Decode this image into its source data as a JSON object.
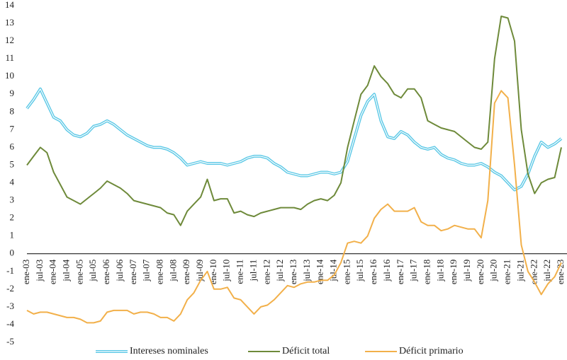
{
  "chart_data": {
    "type": "line",
    "categories": [
      "ene-03",
      null,
      "jul-03",
      null,
      "ene-04",
      null,
      "jul-04",
      null,
      "ene-05",
      null,
      "jul-05",
      null,
      "ene-06",
      null,
      "jul-06",
      null,
      "ene-07",
      null,
      "jul-07",
      null,
      "ene-08",
      null,
      "jul-08",
      null,
      "ene-09",
      null,
      "jul-09",
      null,
      "ene-10",
      null,
      "jul-10",
      null,
      "ene-11",
      null,
      "jul-11",
      null,
      "ene-12",
      null,
      "jul-12",
      null,
      "ene-13",
      null,
      "jul-13",
      null,
      "ene-14",
      null,
      "jul-14",
      null,
      "ene-15",
      null,
      "jul-15",
      null,
      "ene-16",
      null,
      "jul-16",
      null,
      "ene-17",
      null,
      "jul-17",
      null,
      "ene-18",
      null,
      "jul-18",
      null,
      "ene-19",
      null,
      "jul-19",
      null,
      "ene-20",
      null,
      "jul-20",
      null,
      "ene-21",
      null,
      "jul-21",
      null,
      "ene-22",
      null,
      "jul-22",
      null,
      "ene-23"
    ],
    "series": [
      {
        "name": "Intereses nominales",
        "color": "#5bc8e6",
        "values": [
          8.2,
          8.7,
          9.3,
          8.5,
          7.7,
          7.5,
          7.0,
          6.7,
          6.6,
          6.8,
          7.2,
          7.3,
          7.5,
          7.3,
          7.0,
          6.7,
          6.5,
          6.3,
          6.1,
          6.0,
          6.0,
          5.9,
          5.7,
          5.4,
          5.0,
          5.1,
          5.2,
          5.1,
          5.1,
          5.1,
          5.0,
          5.1,
          5.2,
          5.4,
          5.5,
          5.5,
          5.4,
          5.1,
          4.9,
          4.6,
          4.5,
          4.4,
          4.4,
          4.5,
          4.6,
          4.6,
          4.5,
          4.6,
          5.2,
          6.5,
          7.8,
          8.6,
          9.0,
          7.5,
          6.6,
          6.5,
          6.9,
          6.7,
          6.3,
          6.0,
          5.9,
          6.0,
          5.6,
          5.4,
          5.3,
          5.1,
          5.0,
          5.0,
          5.1,
          4.9,
          4.6,
          4.4,
          4.0,
          3.6,
          3.8,
          4.5,
          5.5,
          6.3,
          6.0,
          6.2,
          6.5
        ]
      },
      {
        "name": "Déficit total",
        "color": "#6e8a3a",
        "values": [
          5.0,
          5.5,
          6.0,
          5.7,
          4.6,
          3.9,
          3.2,
          3.0,
          2.8,
          3.1,
          3.4,
          3.7,
          4.1,
          3.9,
          3.7,
          3.4,
          3.0,
          2.9,
          2.8,
          2.7,
          2.6,
          2.3,
          2.2,
          1.6,
          2.4,
          2.8,
          3.2,
          4.2,
          3.0,
          3.1,
          3.1,
          2.3,
          2.4,
          2.2,
          2.1,
          2.3,
          2.4,
          2.5,
          2.6,
          2.6,
          2.6,
          2.5,
          2.8,
          3.0,
          3.1,
          3.0,
          3.3,
          4.0,
          6.0,
          7.5,
          9.0,
          9.5,
          10.6,
          10.0,
          9.6,
          9.0,
          8.8,
          9.3,
          9.3,
          8.8,
          7.5,
          7.3,
          7.1,
          7.0,
          6.9,
          6.6,
          6.3,
          6.0,
          5.9,
          6.3,
          11.0,
          13.4,
          13.3,
          12.0,
          7.0,
          4.5,
          3.4,
          4.0,
          4.2,
          4.3,
          6.0
        ]
      },
      {
        "name": "Déficit primario",
        "color": "#f2b04a",
        "values": [
          -3.2,
          -3.4,
          -3.3,
          -3.3,
          -3.4,
          -3.5,
          -3.6,
          -3.6,
          -3.7,
          -3.9,
          -3.9,
          -3.8,
          -3.3,
          -3.2,
          -3.2,
          -3.2,
          -3.4,
          -3.3,
          -3.3,
          -3.4,
          -3.6,
          -3.6,
          -3.8,
          -3.4,
          -2.6,
          -2.2,
          -1.5,
          -1.0,
          -2.0,
          -2.0,
          -1.9,
          -2.5,
          -2.6,
          -3.0,
          -3.4,
          -3.0,
          -2.9,
          -2.6,
          -2.2,
          -1.8,
          -1.9,
          -1.7,
          -1.6,
          -1.6,
          -1.5,
          -1.5,
          -1.2,
          -0.5,
          0.6,
          0.7,
          0.6,
          1.0,
          2.0,
          2.5,
          2.8,
          2.4,
          2.4,
          2.4,
          2.6,
          1.8,
          1.6,
          1.6,
          1.3,
          1.4,
          1.6,
          1.5,
          1.4,
          1.4,
          0.9,
          3.0,
          8.5,
          9.2,
          8.8,
          5.0,
          0.5,
          -1.0,
          -1.6,
          -2.3,
          -1.7,
          -1.3,
          -0.5
        ]
      }
    ],
    "ylim": [
      -5,
      14
    ],
    "yticks": [
      -5,
      -4,
      -3,
      -2,
      -1,
      0,
      1,
      2,
      3,
      4,
      5,
      6,
      7,
      8,
      9,
      10,
      11,
      12,
      13,
      14
    ],
    "grid": false,
    "legend": "bottom"
  }
}
